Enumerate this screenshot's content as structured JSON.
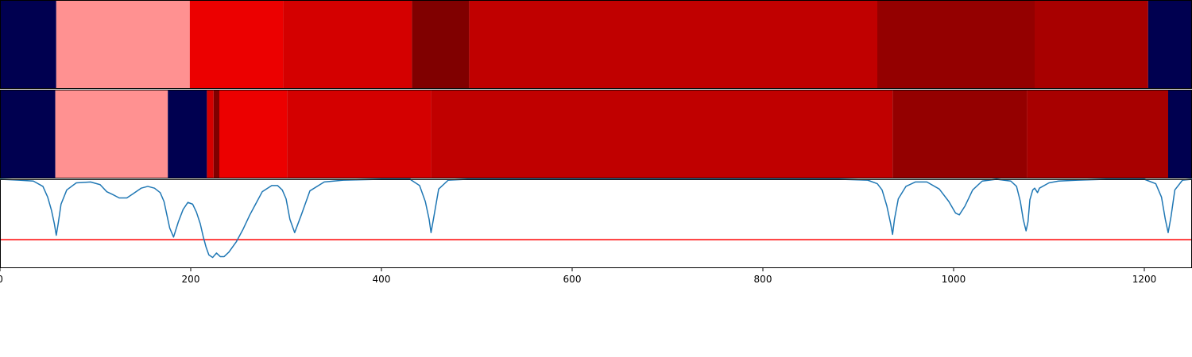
{
  "chart_data": [
    {
      "type": "heatmap",
      "panel": "segments-top",
      "xlim": [
        0,
        1250
      ],
      "segments": [
        {
          "start": 0,
          "end": 59,
          "color": "#000050"
        },
        {
          "start": 59,
          "end": 199,
          "color": "#ff9191"
        },
        {
          "start": 199,
          "end": 297,
          "color": "#ec0000"
        },
        {
          "start": 297,
          "end": 432,
          "color": "#d40000"
        },
        {
          "start": 432,
          "end": 492,
          "color": "#800000"
        },
        {
          "start": 492,
          "end": 920,
          "color": "#c00000"
        },
        {
          "start": 920,
          "end": 1085,
          "color": "#940000"
        },
        {
          "start": 1085,
          "end": 1204,
          "color": "#a80000"
        },
        {
          "start": 1204,
          "end": 1250,
          "color": "#000050"
        }
      ]
    },
    {
      "type": "heatmap",
      "panel": "segments-bottom",
      "xlim": [
        0,
        1250
      ],
      "segments": [
        {
          "start": 0,
          "end": 58,
          "color": "#000050"
        },
        {
          "start": 58,
          "end": 176,
          "color": "#ff9191"
        },
        {
          "start": 176,
          "end": 217,
          "color": "#000050"
        },
        {
          "start": 217,
          "end": 224,
          "color": "#d40000"
        },
        {
          "start": 224,
          "end": 230,
          "color": "#800000"
        },
        {
          "start": 230,
          "end": 301,
          "color": "#ec0000"
        },
        {
          "start": 301,
          "end": 452,
          "color": "#d40000"
        },
        {
          "start": 452,
          "end": 936,
          "color": "#c00000"
        },
        {
          "start": 936,
          "end": 1077,
          "color": "#940000"
        },
        {
          "start": 1077,
          "end": 1225,
          "color": "#a80000"
        },
        {
          "start": 1225,
          "end": 1250,
          "color": "#000050"
        }
      ]
    },
    {
      "type": "line",
      "panel": "boundary-score",
      "xlim": [
        0,
        1250
      ],
      "ylim": [
        0,
        1
      ],
      "threshold": 0.32,
      "threshold_color": "#ff0000",
      "line_color": "#1f77b4",
      "x": [
        0,
        20,
        35,
        45,
        50,
        54,
        57,
        59,
        61,
        64,
        70,
        80,
        95,
        105,
        112,
        118,
        125,
        133,
        140,
        148,
        155,
        162,
        168,
        172,
        175,
        178,
        182,
        187,
        192,
        197,
        202,
        206,
        210,
        213,
        216,
        219,
        223,
        227,
        231,
        235,
        240,
        248,
        255,
        262,
        268,
        275,
        285,
        291,
        296,
        300,
        304,
        309,
        316,
        325,
        340,
        360,
        400,
        430,
        440,
        446,
        450,
        452,
        455,
        460,
        470,
        490,
        520,
        600,
        700,
        800,
        880,
        910,
        920,
        925,
        930,
        934,
        936,
        938,
        942,
        950,
        960,
        972,
        985,
        995,
        1002,
        1006,
        1012,
        1020,
        1030,
        1045,
        1060,
        1066,
        1070,
        1073,
        1076,
        1078,
        1080,
        1083,
        1085,
        1088,
        1090,
        1100,
        1110,
        1130,
        1160,
        1200,
        1212,
        1218,
        1222,
        1225,
        1228,
        1232,
        1240,
        1250
      ],
      "y": [
        1.0,
        0.99,
        0.98,
        0.92,
        0.8,
        0.65,
        0.5,
        0.37,
        0.5,
        0.72,
        0.88,
        0.96,
        0.97,
        0.94,
        0.86,
        0.83,
        0.79,
        0.79,
        0.84,
        0.9,
        0.92,
        0.9,
        0.85,
        0.75,
        0.6,
        0.45,
        0.35,
        0.52,
        0.66,
        0.74,
        0.72,
        0.63,
        0.5,
        0.36,
        0.24,
        0.15,
        0.12,
        0.17,
        0.13,
        0.13,
        0.18,
        0.3,
        0.44,
        0.6,
        0.72,
        0.86,
        0.93,
        0.93,
        0.88,
        0.78,
        0.55,
        0.4,
        0.6,
        0.87,
        0.97,
        0.99,
        1.0,
        1.0,
        0.93,
        0.75,
        0.55,
        0.4,
        0.58,
        0.89,
        0.99,
        1.0,
        1.0,
        1.0,
        1.0,
        1.0,
        1.0,
        0.99,
        0.95,
        0.88,
        0.7,
        0.5,
        0.38,
        0.55,
        0.78,
        0.92,
        0.97,
        0.97,
        0.89,
        0.75,
        0.62,
        0.6,
        0.7,
        0.88,
        0.98,
        1.0,
        0.98,
        0.92,
        0.75,
        0.55,
        0.42,
        0.52,
        0.77,
        0.88,
        0.9,
        0.85,
        0.9,
        0.96,
        0.98,
        0.99,
        1.0,
        1.0,
        0.95,
        0.8,
        0.55,
        0.4,
        0.58,
        0.88,
        0.99,
        1.0
      ]
    }
  ],
  "xaxis": {
    "ticks": [
      {
        "value": 0,
        "label": "0"
      },
      {
        "value": 200,
        "label": "200"
      },
      {
        "value": 400,
        "label": "400"
      },
      {
        "value": 600,
        "label": "600"
      },
      {
        "value": 800,
        "label": "800"
      },
      {
        "value": 1000,
        "label": "1000"
      },
      {
        "value": 1200,
        "label": "1200"
      }
    ]
  }
}
